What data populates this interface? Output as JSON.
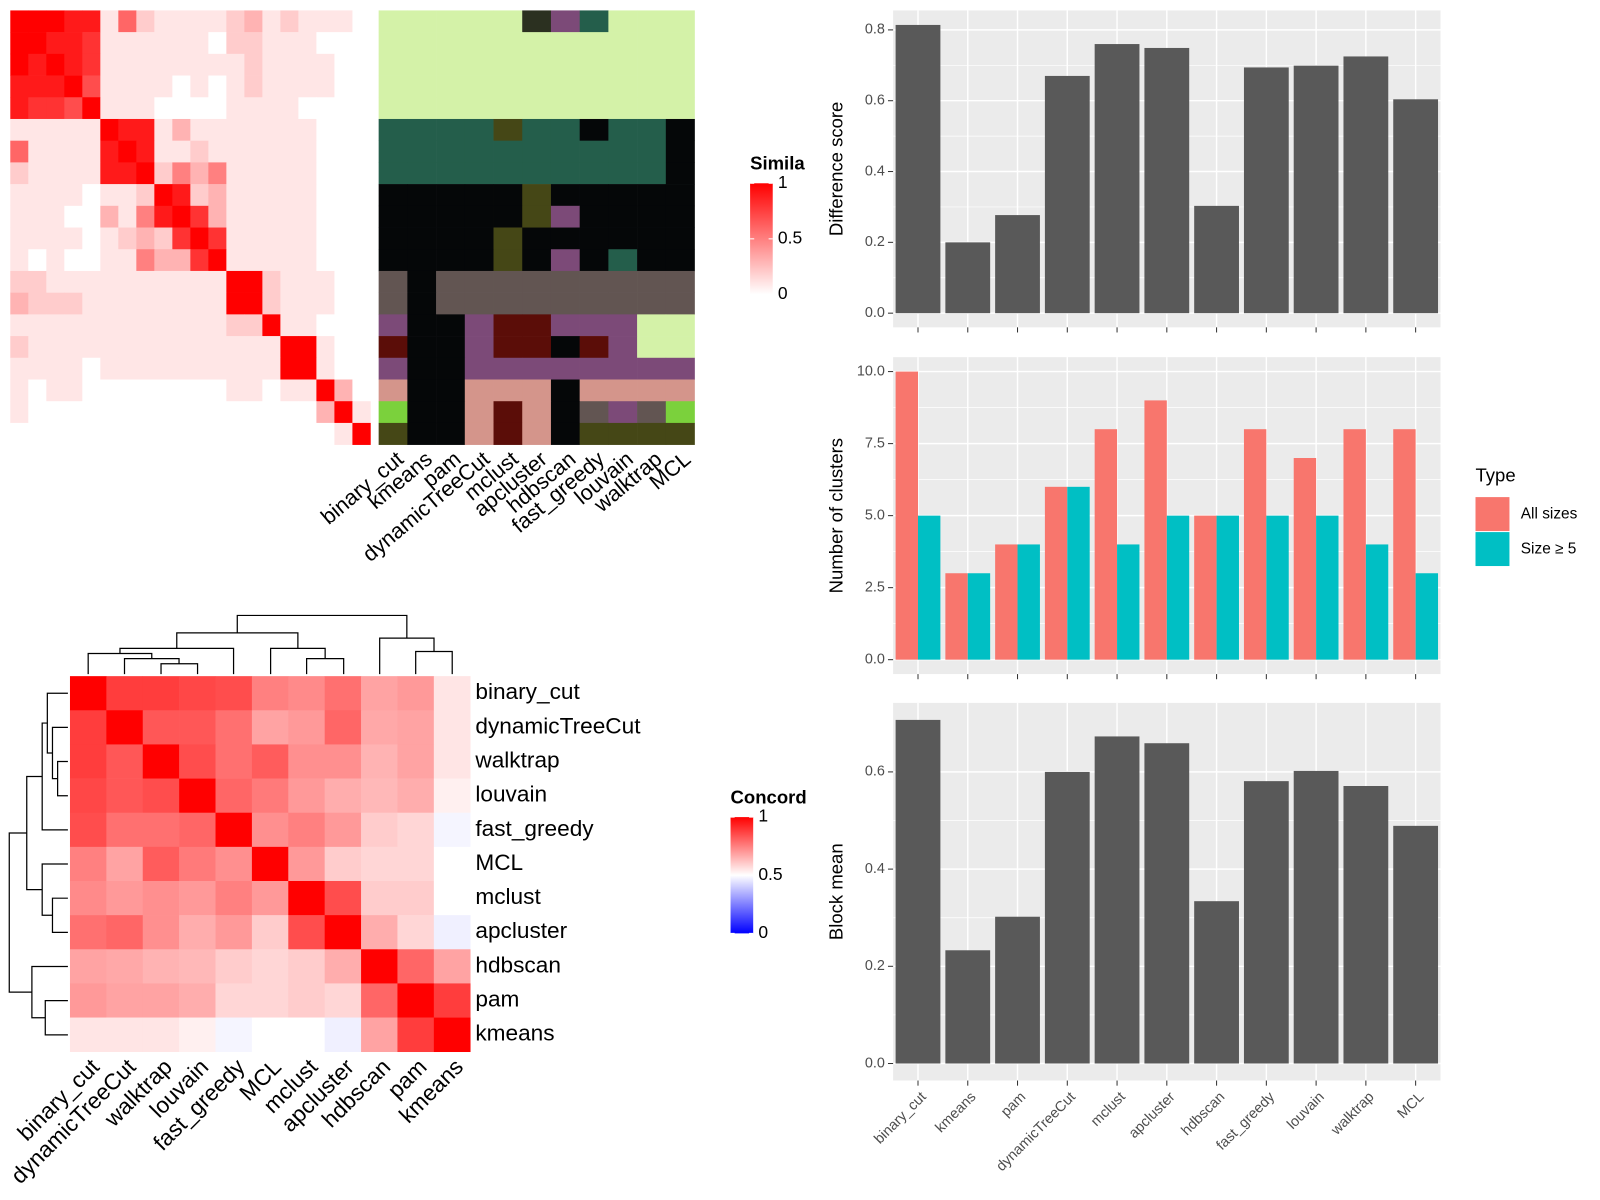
{
  "chart_data": [
    {
      "type": "heatmap",
      "legend_title": "Simila",
      "colors": [
        "#ffffff",
        "#ff0000"
      ],
      "clim": [
        0,
        1
      ],
      "cticks": [
        0,
        0.5,
        1
      ],
      "values": [
        [
          1,
          1,
          1,
          0.9,
          0.9,
          0.1,
          0.6,
          0.2,
          0.1,
          0.1,
          0.1,
          0.1,
          0.2,
          0.3,
          0.1,
          0.2,
          0.1,
          0.1,
          0.1,
          0
        ],
        [
          1,
          1,
          0.9,
          0.9,
          0.8,
          0.1,
          0.1,
          0.1,
          0.1,
          0.1,
          0.1,
          0,
          0.2,
          0.2,
          0.1,
          0.1,
          0.1,
          0,
          0,
          0
        ],
        [
          1,
          0.9,
          1,
          0.9,
          0.8,
          0.1,
          0.1,
          0.1,
          0.1,
          0.1,
          0.1,
          0.1,
          0.1,
          0.2,
          0.1,
          0.1,
          0.1,
          0.1,
          0,
          0
        ],
        [
          0.9,
          0.9,
          0.9,
          1,
          0.7,
          0.1,
          0.1,
          0.1,
          0.1,
          0,
          0.1,
          0,
          0.1,
          0.2,
          0.1,
          0.1,
          0.1,
          0.1,
          0,
          0
        ],
        [
          0.9,
          0.8,
          0.8,
          0.7,
          1,
          0.1,
          0.1,
          0.1,
          0,
          0,
          0,
          0,
          0.1,
          0.1,
          0.1,
          0.1,
          0,
          0,
          0,
          0
        ],
        [
          0.1,
          0.1,
          0.1,
          0.1,
          0.1,
          1,
          0.9,
          0.9,
          0.1,
          0.3,
          0.1,
          0.1,
          0.1,
          0.1,
          0.1,
          0.1,
          0.1,
          0,
          0,
          0
        ],
        [
          0.6,
          0.1,
          0.1,
          0.1,
          0.1,
          0.9,
          1,
          0.9,
          0.1,
          0.1,
          0.2,
          0.1,
          0.1,
          0.1,
          0.1,
          0.1,
          0.1,
          0,
          0,
          0
        ],
        [
          0.2,
          0.1,
          0.1,
          0.1,
          0.1,
          0.9,
          0.9,
          1,
          0.2,
          0.5,
          0.3,
          0.5,
          0.1,
          0.1,
          0.1,
          0.1,
          0.1,
          0,
          0,
          0
        ],
        [
          0.1,
          0.1,
          0.1,
          0.1,
          0,
          0.1,
          0.1,
          0.2,
          1,
          0.9,
          0.2,
          0.3,
          0.1,
          0.1,
          0.1,
          0.1,
          0.1,
          0,
          0,
          0
        ],
        [
          0.1,
          0.1,
          0.1,
          0,
          0,
          0.3,
          0.1,
          0.5,
          0.9,
          1,
          0.8,
          0.3,
          0.1,
          0.1,
          0.1,
          0.1,
          0.1,
          0,
          0,
          0
        ],
        [
          0.1,
          0.1,
          0.1,
          0.1,
          0,
          0.1,
          0.2,
          0.3,
          0.2,
          0.8,
          1,
          0.8,
          0.1,
          0.1,
          0.1,
          0.1,
          0.1,
          0,
          0,
          0
        ],
        [
          0.1,
          0,
          0.1,
          0,
          0,
          0.1,
          0.1,
          0.5,
          0.3,
          0.3,
          0.8,
          1,
          0.1,
          0.1,
          0.1,
          0.1,
          0.1,
          0,
          0,
          0
        ],
        [
          0.2,
          0.2,
          0.1,
          0.1,
          0.1,
          0.1,
          0.1,
          0.1,
          0.1,
          0.1,
          0.1,
          0.1,
          1,
          1,
          0.2,
          0.1,
          0.1,
          0.1,
          0,
          0
        ],
        [
          0.3,
          0.2,
          0.2,
          0.2,
          0.1,
          0.1,
          0.1,
          0.1,
          0.1,
          0.1,
          0.1,
          0.1,
          1,
          1,
          0.2,
          0.1,
          0.1,
          0.1,
          0,
          0
        ],
        [
          0.1,
          0.1,
          0.1,
          0.1,
          0.1,
          0.1,
          0.1,
          0.1,
          0.1,
          0.1,
          0.1,
          0.1,
          0.2,
          0.2,
          1,
          0.1,
          0.1,
          0,
          0,
          0
        ],
        [
          0.2,
          0.1,
          0.1,
          0.1,
          0.1,
          0.1,
          0.1,
          0.1,
          0.1,
          0.1,
          0.1,
          0.1,
          0.1,
          0.1,
          0.1,
          1,
          1,
          0.1,
          0,
          0
        ],
        [
          0.1,
          0.1,
          0.1,
          0.1,
          0,
          0.1,
          0.1,
          0.1,
          0.1,
          0.1,
          0.1,
          0.1,
          0.1,
          0.1,
          0.1,
          1,
          1,
          0.1,
          0,
          0
        ],
        [
          0.1,
          0,
          0.1,
          0.1,
          0,
          0,
          0,
          0,
          0,
          0,
          0,
          0,
          0.1,
          0.1,
          0,
          0.1,
          0.1,
          1,
          0.3,
          0
        ],
        [
          0.1,
          0,
          0,
          0,
          0,
          0,
          0,
          0,
          0,
          0,
          0,
          0,
          0,
          0,
          0,
          0,
          0,
          0.3,
          1,
          0.1
        ],
        [
          0,
          0,
          0,
          0,
          0,
          0,
          0,
          0,
          0,
          0,
          0,
          0,
          0,
          0,
          0,
          0,
          0,
          0,
          0.1,
          1
        ]
      ]
    },
    {
      "type": "class_map",
      "categories": [
        "binary_cut",
        "kmeans",
        "pam",
        "dynamicTreeCut",
        "mclust",
        "apcluster",
        "hdbscan",
        "fast_greedy",
        "louvain",
        "walktrap",
        "MCL"
      ],
      "palette": [
        "#d4f2a8",
        "#245e4b",
        "#050708",
        "#625552",
        "#7c4a78",
        "#5b0d08",
        "#d4958b",
        "#7bd13c",
        "#454716",
        "#2b3020"
      ],
      "classes": [
        [
          0,
          0,
          0,
          0,
          0,
          9,
          4,
          1,
          0,
          0,
          0
        ],
        [
          0,
          0,
          0,
          0,
          0,
          0,
          0,
          0,
          0,
          0,
          0
        ],
        [
          0,
          0,
          0,
          0,
          0,
          0,
          0,
          0,
          0,
          0,
          0
        ],
        [
          0,
          0,
          0,
          0,
          0,
          0,
          0,
          0,
          0,
          0,
          0
        ],
        [
          0,
          0,
          0,
          0,
          0,
          0,
          0,
          0,
          0,
          0,
          0
        ],
        [
          1,
          1,
          1,
          1,
          8,
          1,
          1,
          2,
          1,
          1,
          2
        ],
        [
          1,
          1,
          1,
          1,
          1,
          1,
          1,
          1,
          1,
          1,
          2
        ],
        [
          1,
          1,
          1,
          1,
          1,
          1,
          1,
          1,
          1,
          1,
          2
        ],
        [
          2,
          2,
          2,
          2,
          2,
          8,
          2,
          2,
          2,
          2,
          2
        ],
        [
          2,
          2,
          2,
          2,
          2,
          8,
          4,
          2,
          2,
          2,
          2
        ],
        [
          2,
          2,
          2,
          2,
          8,
          2,
          2,
          2,
          2,
          2,
          2
        ],
        [
          2,
          2,
          2,
          2,
          8,
          2,
          4,
          2,
          1,
          2,
          2
        ],
        [
          3,
          2,
          3,
          3,
          3,
          3,
          3,
          3,
          3,
          3,
          3
        ],
        [
          3,
          2,
          3,
          3,
          3,
          3,
          3,
          3,
          3,
          3,
          3
        ],
        [
          4,
          2,
          2,
          4,
          5,
          5,
          4,
          4,
          4,
          0,
          0
        ],
        [
          5,
          2,
          2,
          4,
          5,
          5,
          2,
          5,
          4,
          0,
          0
        ],
        [
          4,
          2,
          2,
          4,
          4,
          4,
          4,
          4,
          4,
          4,
          4
        ],
        [
          6,
          2,
          2,
          6,
          6,
          6,
          2,
          6,
          6,
          6,
          6
        ],
        [
          7,
          2,
          2,
          6,
          5,
          6,
          2,
          3,
          4,
          3,
          7
        ],
        [
          8,
          2,
          2,
          6,
          5,
          6,
          2,
          8,
          8,
          8,
          8
        ]
      ]
    },
    {
      "type": "heatmap",
      "legend_title": "Concord",
      "colors": [
        "#0000ff",
        "#ffffff",
        "#ff0000"
      ],
      "clim": [
        0,
        1
      ],
      "cticks": [
        0,
        0.5,
        1
      ],
      "categories": [
        "binary_cut",
        "dynamicTreeCut",
        "walktrap",
        "louvain",
        "fast_greedy",
        "MCL",
        "mclust",
        "apcluster",
        "hdbscan",
        "pam",
        "kmeans"
      ],
      "values": [
        [
          1,
          0.88,
          0.88,
          0.86,
          0.85,
          0.75,
          0.73,
          0.78,
          0.68,
          0.7,
          0.55
        ],
        [
          0.88,
          1,
          0.83,
          0.83,
          0.78,
          0.68,
          0.7,
          0.8,
          0.67,
          0.68,
          0.55
        ],
        [
          0.88,
          0.83,
          1,
          0.85,
          0.78,
          0.82,
          0.72,
          0.72,
          0.65,
          0.68,
          0.55
        ],
        [
          0.86,
          0.83,
          0.85,
          1,
          0.8,
          0.76,
          0.7,
          0.66,
          0.64,
          0.66,
          0.53
        ],
        [
          0.85,
          0.78,
          0.78,
          0.8,
          1,
          0.72,
          0.75,
          0.7,
          0.6,
          0.58,
          0.48
        ],
        [
          0.75,
          0.68,
          0.82,
          0.76,
          0.72,
          1,
          0.7,
          0.6,
          0.58,
          0.58,
          0.5
        ],
        [
          0.73,
          0.7,
          0.72,
          0.7,
          0.75,
          0.7,
          1,
          0.85,
          0.6,
          0.6,
          0.5
        ],
        [
          0.78,
          0.8,
          0.72,
          0.66,
          0.7,
          0.6,
          0.85,
          1,
          0.66,
          0.58,
          0.47
        ],
        [
          0.68,
          0.67,
          0.65,
          0.64,
          0.6,
          0.58,
          0.6,
          0.66,
          1,
          0.8,
          0.68
        ],
        [
          0.7,
          0.68,
          0.68,
          0.66,
          0.58,
          0.58,
          0.6,
          0.58,
          0.8,
          1,
          0.88
        ],
        [
          0.55,
          0.55,
          0.55,
          0.53,
          0.48,
          0.5,
          0.5,
          0.47,
          0.68,
          0.88,
          1
        ]
      ]
    },
    {
      "type": "bar",
      "y_label": "Difference score",
      "color": "#595959",
      "grid": true,
      "values": [
        0.814,
        0.2,
        0.277,
        0.67,
        0.76,
        0.749,
        0.303,
        0.694,
        0.699,
        0.725,
        0.604
      ],
      "ylim": [
        -0.04,
        0.855
      ],
      "yticks": [
        {
          "value": 0,
          "label": "0.0"
        },
        0.2,
        0.4,
        0.6,
        0.8
      ]
    },
    {
      "type": "bar",
      "y_label": "Number of clusters",
      "grid": true,
      "legend_title": "Type",
      "series": [
        {
          "name": "All sizes",
          "color": "#f8766d",
          "values": [
            10,
            3,
            4,
            6,
            8,
            9,
            5,
            8,
            7,
            8,
            8
          ]
        },
        {
          "name": "Size ≥ 5",
          "color": "#00bfc4",
          "values": [
            5,
            3,
            4,
            6,
            4,
            5,
            5,
            5,
            5,
            4,
            3
          ]
        }
      ],
      "ylim": [
        -0.5,
        10.5
      ],
      "yticks": [
        {
          "value": 0,
          "label": "0.0"
        },
        2.5,
        {
          "value": 5,
          "label": "5.0"
        },
        7.5,
        {
          "value": 10,
          "label": "10.0"
        }
      ]
    },
    {
      "type": "bar",
      "y_label": "Block mean",
      "color": "#595959",
      "grid": true,
      "categories": [
        "binary_cut",
        "kmeans",
        "pam",
        "dynamicTreeCut",
        "mclust",
        "apcluster",
        "hdbscan",
        "fast_greedy",
        "louvain",
        "walktrap",
        "MCL"
      ],
      "values": [
        0.707,
        0.233,
        0.302,
        0.6,
        0.673,
        0.659,
        0.334,
        0.581,
        0.602,
        0.571,
        0.489
      ],
      "ylim": [
        -0.035,
        0.742
      ],
      "yticks": [
        {
          "value": 0,
          "label": "0.0"
        },
        0.2,
        0.4,
        0.6
      ]
    }
  ]
}
